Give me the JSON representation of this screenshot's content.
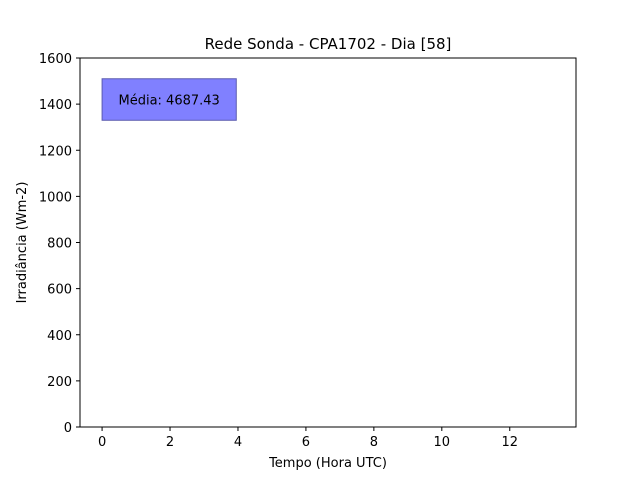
{
  "chart_data": {
    "type": "line",
    "title": "Rede Sonda - CPA1702 - Dia [58]",
    "xlabel": "Tempo (Hora UTC)",
    "ylabel": "Irradiância (Wm-2)",
    "xlim": [
      -0.65,
      13.95
    ],
    "ylim": [
      0,
      1600
    ],
    "xticks": [
      0,
      2,
      4,
      6,
      8,
      10,
      12
    ],
    "yticks": [
      0,
      200,
      400,
      600,
      800,
      1000,
      1200,
      1400,
      1600
    ],
    "grid": false,
    "series": [],
    "annotation": {
      "text": "Média: 4687.43",
      "x_range": [
        0,
        3.95
      ],
      "y_range": [
        1330,
        1510
      ],
      "facecolor": "#8080ff",
      "edgecolor": "#5a5ab0"
    }
  }
}
